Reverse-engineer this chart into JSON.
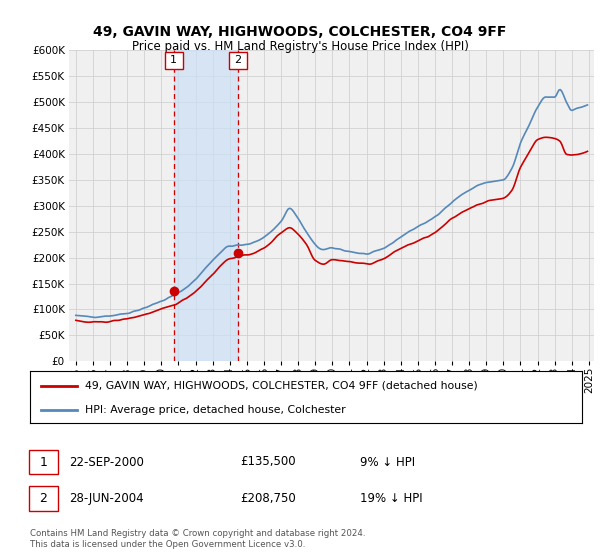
{
  "title": "49, GAVIN WAY, HIGHWOODS, COLCHESTER, CO4 9FF",
  "subtitle": "Price paid vs. HM Land Registry's House Price Index (HPI)",
  "hpi_color": "#5588bb",
  "price_color": "#cc0000",
  "background_color": "#ffffff",
  "plot_bg_color": "#f0f0f0",
  "grid_color": "#cccccc",
  "ylim": [
    0,
    600000
  ],
  "yticks": [
    0,
    50000,
    100000,
    150000,
    200000,
    250000,
    300000,
    350000,
    400000,
    450000,
    500000,
    550000,
    600000
  ],
  "sale1_date": "22-SEP-2000",
  "sale1_price": 135500,
  "sale1_hpi_pct": "9% ↓ HPI",
  "sale2_date": "28-JUN-2004",
  "sale2_price": 208750,
  "sale2_hpi_pct": "19% ↓ HPI",
  "legend_line1": "49, GAVIN WAY, HIGHWOODS, COLCHESTER, CO4 9FF (detached house)",
  "legend_line2": "HPI: Average price, detached house, Colchester",
  "footer": "Contains HM Land Registry data © Crown copyright and database right 2024.\nThis data is licensed under the Open Government Licence v3.0.",
  "sale1_year": 2000.72,
  "sale2_year": 2004.49,
  "shade_start": 2000.72,
  "shade_end": 2004.49,
  "xtick_years": [
    1995,
    1996,
    1997,
    1998,
    1999,
    2000,
    2001,
    2002,
    2003,
    2004,
    2005,
    2006,
    2007,
    2008,
    2009,
    2010,
    2011,
    2012,
    2013,
    2014,
    2015,
    2016,
    2017,
    2018,
    2019,
    2020,
    2021,
    2022,
    2023,
    2024,
    2025
  ]
}
